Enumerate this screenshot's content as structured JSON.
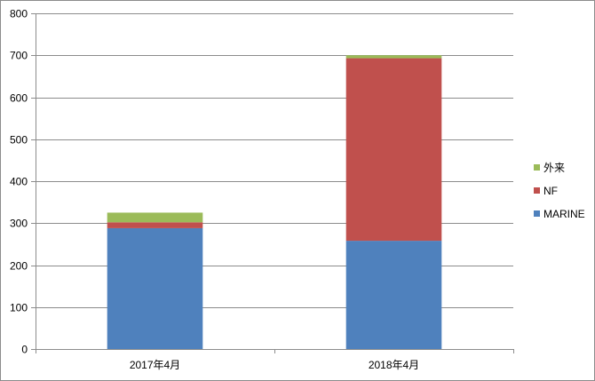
{
  "chart_data": {
    "type": "bar",
    "stacked": true,
    "title": "",
    "xlabel": "",
    "ylabel": "",
    "categories": [
      "2017年4月",
      "2018年4月"
    ],
    "series": [
      {
        "name": "MARINE",
        "color": "#4f81bd",
        "values": [
          288,
          258
        ]
      },
      {
        "name": "NF",
        "color": "#c0504d",
        "values": [
          14,
          435
        ]
      },
      {
        "name": "外来",
        "color": "#9bbb59",
        "values": [
          23,
          7
        ]
      }
    ],
    "ylim": [
      0,
      800
    ],
    "yticks": [
      0,
      100,
      200,
      300,
      400,
      500,
      600,
      700,
      800
    ],
    "grid": true,
    "legend_position": "right"
  }
}
